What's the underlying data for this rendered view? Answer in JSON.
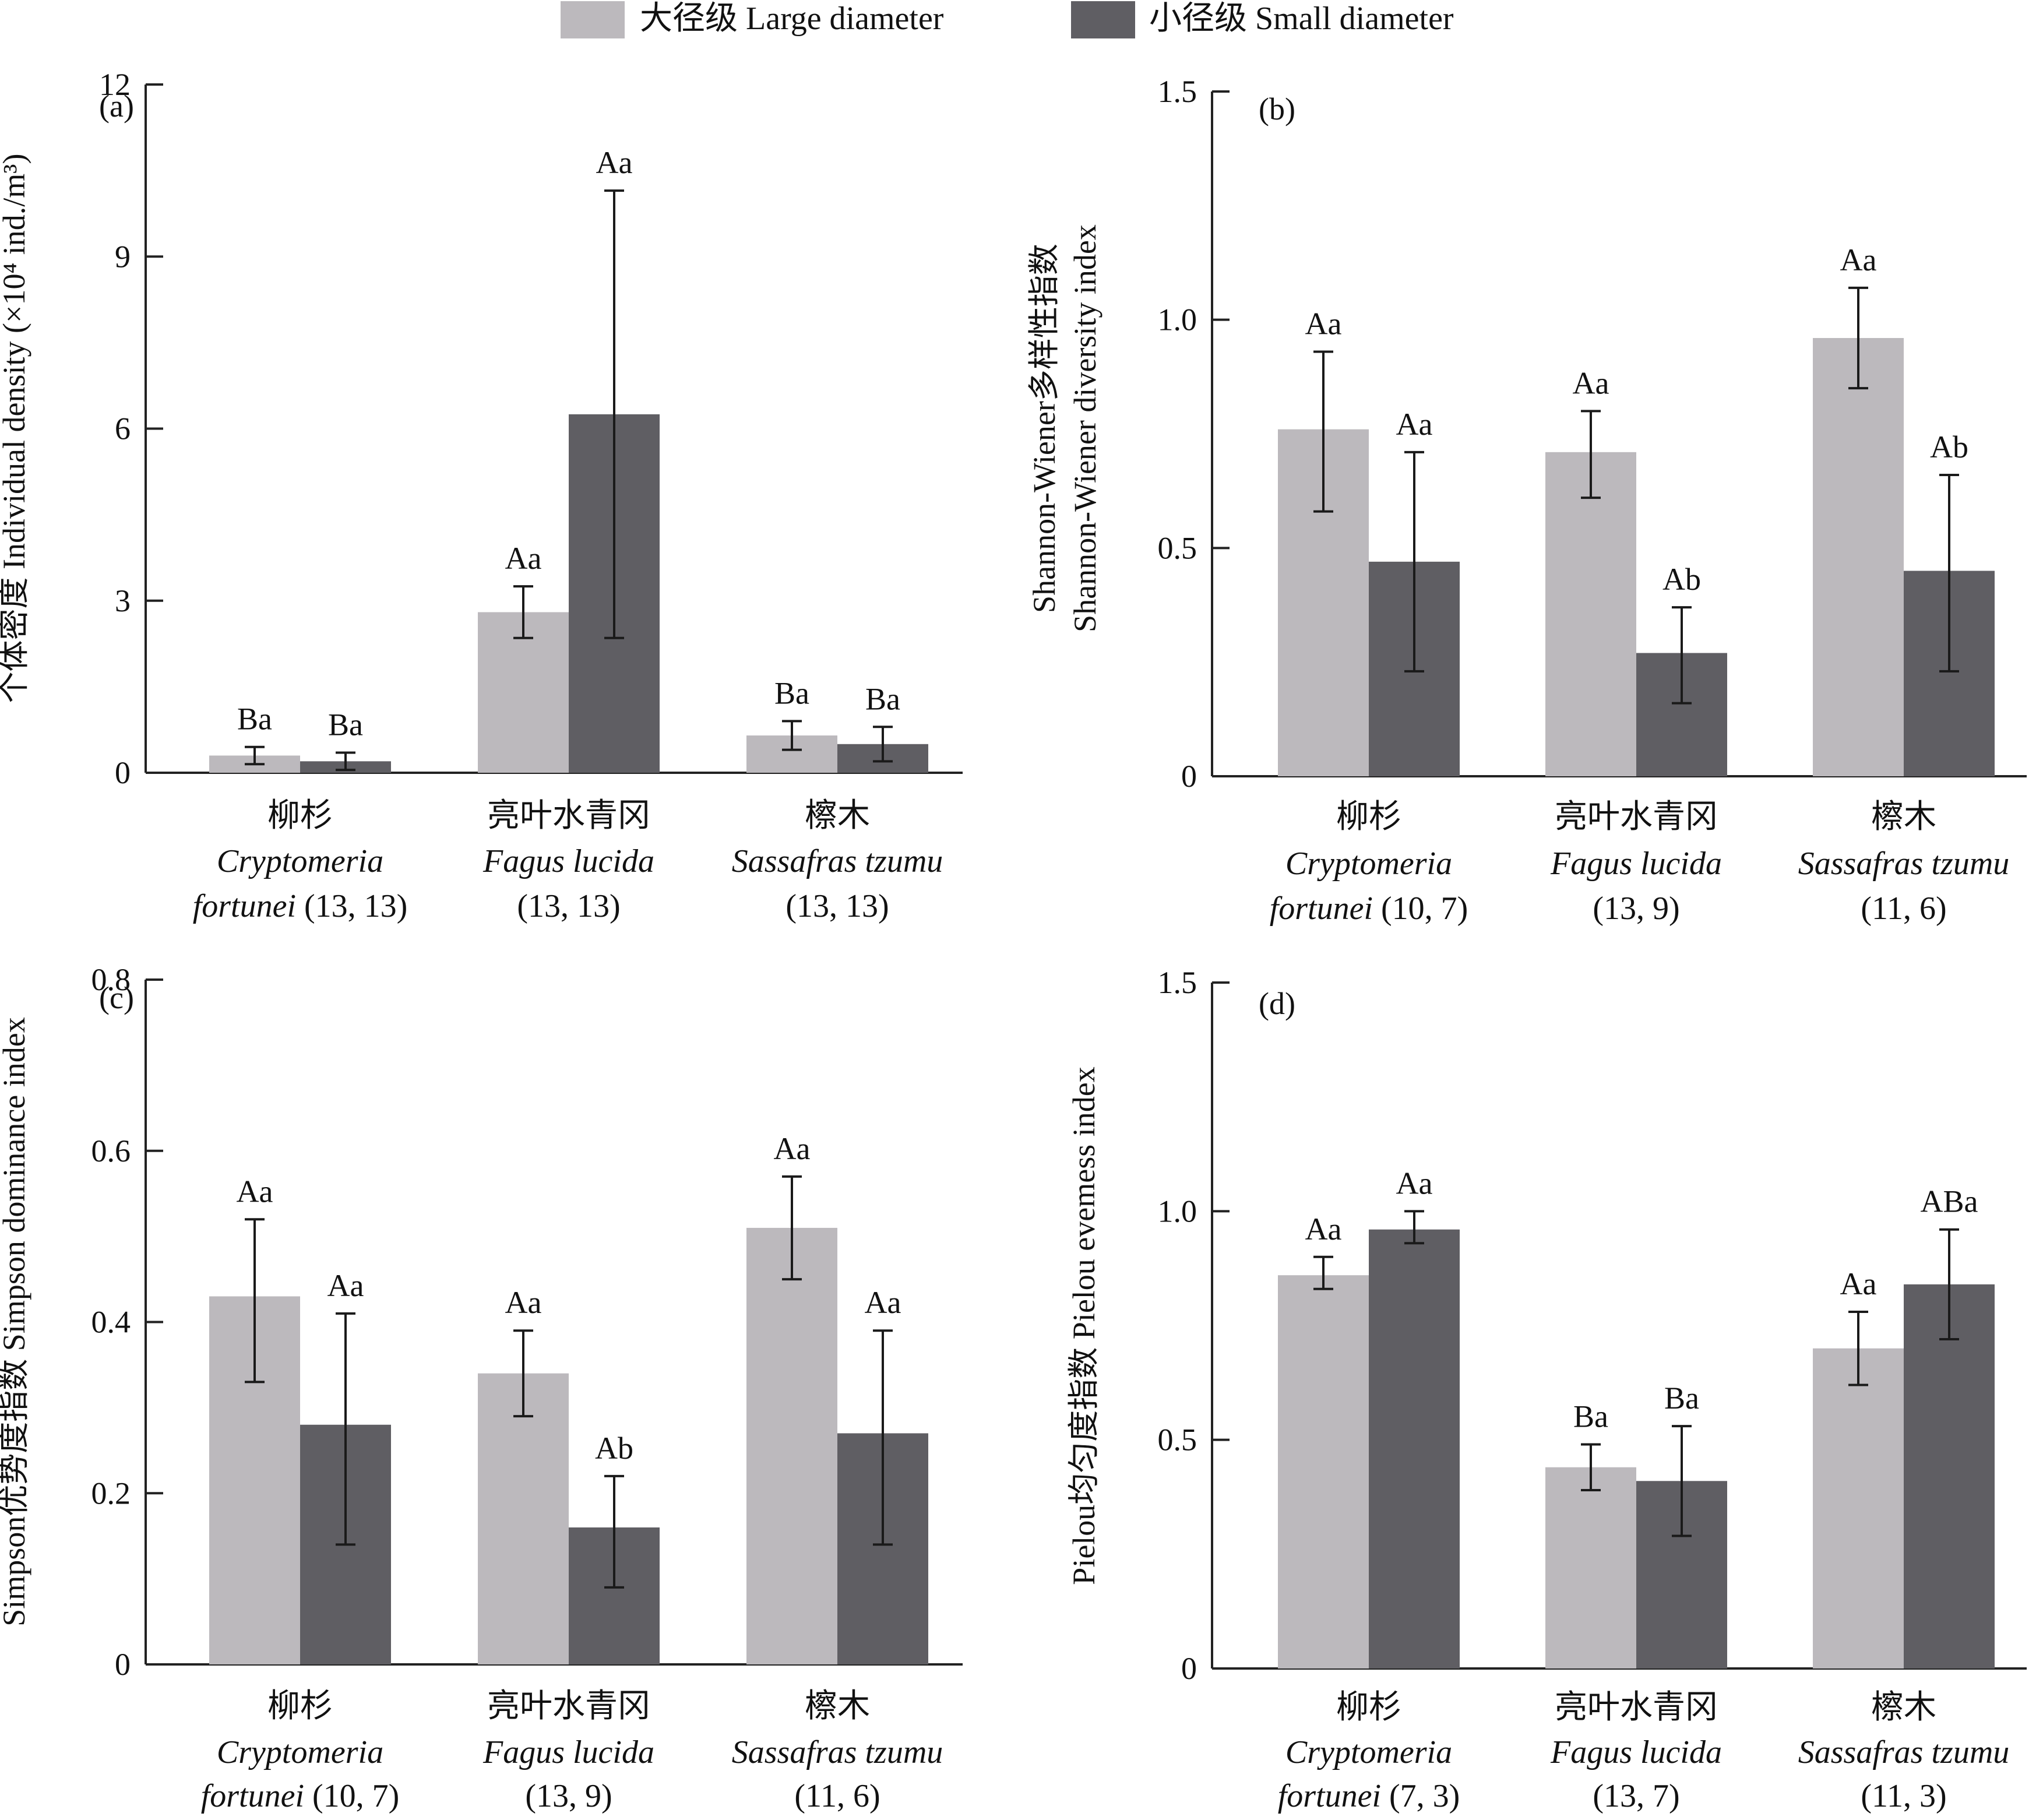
{
  "colors": {
    "large": "#bcb9bd",
    "small": "#5f5e63",
    "axis": "#222222"
  },
  "legend": {
    "items": [
      {
        "label": "大径级 Large diameter",
        "color": "#bcb9bd"
      },
      {
        "label": "小径级 Small diameter",
        "color": "#5f5e63"
      }
    ]
  },
  "chart_data": [
    {
      "type": "bar",
      "panel": "(a)",
      "ylabel": "个体密度 Individual density (×10⁴ ind./m³)",
      "ylim": [
        0,
        12
      ],
      "yticks": [
        "0",
        "3",
        "6",
        "9",
        "12"
      ],
      "categories": [
        {
          "cn": "柳杉",
          "genus": "Cryptomeria",
          "species": "fortunei",
          "n": "(13, 13)"
        },
        {
          "cn": "亮叶水青冈",
          "genus": "Fagus lucida",
          "species": "",
          "n": "(13, 13)"
        },
        {
          "cn": "檫木",
          "genus": "Sassafras tzumu",
          "species": "",
          "n": "(13, 13)"
        }
      ],
      "series": [
        {
          "name": "大径级 Large diameter",
          "values": [
            0.3,
            2.8,
            0.65
          ],
          "err_low": [
            0.15,
            2.35,
            0.4
          ],
          "err_high": [
            0.45,
            3.25,
            0.9
          ],
          "labels": [
            "Ba",
            "Aa",
            "Ba"
          ]
        },
        {
          "name": "小径级 Small diameter",
          "values": [
            0.2,
            6.25,
            0.5
          ],
          "err_low": [
            0.05,
            2.35,
            0.2
          ],
          "err_high": [
            0.35,
            10.15,
            0.8
          ],
          "labels": [
            "Ba",
            "Aa",
            "Ba"
          ]
        }
      ]
    },
    {
      "type": "bar",
      "panel": "(b)",
      "ylabel_line1": "Shannon-Wiener多样性指数",
      "ylabel_line2": "Shannon-Wiener diversity index",
      "ylim": [
        0,
        1.5
      ],
      "yticks": [
        "0",
        "0.5",
        "1.0",
        "1.5"
      ],
      "categories": [
        {
          "cn": "柳杉",
          "genus": "Cryptomeria",
          "species": "fortunei",
          "n": "(10, 7)"
        },
        {
          "cn": "亮叶水青冈",
          "genus": "Fagus lucida",
          "species": "",
          "n": "(13, 9)"
        },
        {
          "cn": "檫木",
          "genus": "Sassafras tzumu",
          "species": "",
          "n": "(11, 6)"
        }
      ],
      "series": [
        {
          "name": "大径级 Large diameter",
          "values": [
            0.76,
            0.71,
            0.96
          ],
          "err_low": [
            0.58,
            0.61,
            0.85
          ],
          "err_high": [
            0.93,
            0.8,
            1.07
          ],
          "labels": [
            "Aa",
            "Aa",
            "Aa"
          ]
        },
        {
          "name": "小径级 Small diameter",
          "values": [
            0.47,
            0.27,
            0.45
          ],
          "err_low": [
            0.23,
            0.16,
            0.23
          ],
          "err_high": [
            0.71,
            0.37,
            0.66
          ],
          "labels": [
            "Aa",
            "Ab",
            "Ab"
          ]
        }
      ]
    },
    {
      "type": "bar",
      "panel": "(c)",
      "ylabel": "Simpson优势度指数 Simpson dominance index",
      "ylim": [
        0,
        0.8
      ],
      "yticks": [
        "0",
        "0.2",
        "0.4",
        "0.6",
        "0.8"
      ],
      "categories": [
        {
          "cn": "柳杉",
          "genus": "Cryptomeria",
          "species": "fortunei",
          "n": "(10, 7)"
        },
        {
          "cn": "亮叶水青冈",
          "genus": "Fagus lucida",
          "species": "",
          "n": "(13, 9)"
        },
        {
          "cn": "檫木",
          "genus": "Sassafras tzumu",
          "species": "",
          "n": "(11, 6)"
        }
      ],
      "series": [
        {
          "name": "大径级 Large diameter",
          "values": [
            0.43,
            0.34,
            0.51
          ],
          "err_low": [
            0.33,
            0.29,
            0.45
          ],
          "err_high": [
            0.52,
            0.39,
            0.57
          ],
          "labels": [
            "Aa",
            "Aa",
            "Aa"
          ]
        },
        {
          "name": "小径级 Small diameter",
          "values": [
            0.28,
            0.16,
            0.27
          ],
          "err_low": [
            0.14,
            0.09,
            0.14
          ],
          "err_high": [
            0.41,
            0.22,
            0.39
          ],
          "labels": [
            "Aa",
            "Ab",
            "Aa"
          ]
        }
      ]
    },
    {
      "type": "bar",
      "panel": "(d)",
      "ylabel": "Pielou均匀度指数 Pielou evemess index",
      "ylim": [
        0,
        1.5
      ],
      "yticks": [
        "0",
        "0.5",
        "1.0",
        "1.5"
      ],
      "categories": [
        {
          "cn": "柳杉",
          "genus": "Cryptomeria",
          "species": "fortunei",
          "n": "(7, 3)"
        },
        {
          "cn": "亮叶水青冈",
          "genus": "Fagus lucida",
          "species": "",
          "n": "(13, 7)"
        },
        {
          "cn": "檫木",
          "genus": "Sassafras tzumu",
          "species": "",
          "n": "(11, 3)"
        }
      ],
      "series": [
        {
          "name": "大径级 Large diameter",
          "values": [
            0.86,
            0.44,
            0.7
          ],
          "err_low": [
            0.83,
            0.39,
            0.62
          ],
          "err_high": [
            0.9,
            0.49,
            0.78
          ],
          "labels": [
            "Aa",
            "Ba",
            "Aa"
          ]
        },
        {
          "name": "小径级 Small diameter",
          "values": [
            0.96,
            0.41,
            0.84
          ],
          "err_low": [
            0.93,
            0.29,
            0.72
          ],
          "err_high": [
            1.0,
            0.53,
            0.96
          ],
          "labels": [
            "Aa",
            "Ba",
            "ABa"
          ]
        }
      ]
    }
  ]
}
